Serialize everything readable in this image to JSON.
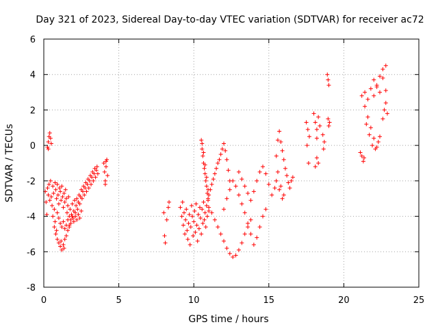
{
  "chart_data": {
    "type": "scatter",
    "title": "Day 321 of 2023, Sidereal Day-to-day VTEC variation (SDTVAR) for receiver ac72",
    "xlabel": "GPS time / hours",
    "ylabel": "SDTVAR / TECUs",
    "xlim": [
      0,
      25
    ],
    "ylim": [
      -8,
      6
    ],
    "xticks": [
      "0",
      "5",
      "10",
      "15",
      "20",
      "25"
    ],
    "yticks": [
      "-8",
      "-6",
      "-4",
      "-2",
      "0",
      "2",
      "4",
      "6"
    ],
    "grid": true,
    "marker": "plus",
    "color": "#ff0000",
    "series": [
      {
        "points": [
          [
            0.1,
            -2.6
          ],
          [
            0.15,
            -3.2
          ],
          [
            0.2,
            -3.9
          ],
          [
            0.25,
            -2.4
          ],
          [
            0.3,
            -2.8
          ],
          [
            0.35,
            -2.2
          ],
          [
            0.4,
            -3.1
          ],
          [
            0.45,
            -2.0
          ],
          [
            0.5,
            -2.9
          ],
          [
            0.55,
            -3.4
          ],
          [
            0.6,
            -2.3
          ],
          [
            0.65,
            -2.7
          ],
          [
            0.7,
            -3.6
          ],
          [
            0.75,
            -2.1
          ],
          [
            0.8,
            -2.5
          ],
          [
            0.85,
            -3.0
          ],
          [
            0.9,
            -2.2
          ],
          [
            0.95,
            -2.8
          ],
          [
            1.0,
            -3.3
          ],
          [
            1.05,
            -2.4
          ],
          [
            1.1,
            -2.6
          ],
          [
            1.15,
            -3.1
          ],
          [
            1.2,
            -2.3
          ],
          [
            1.25,
            -2.9
          ],
          [
            1.3,
            -3.5
          ],
          [
            1.35,
            -2.7
          ],
          [
            1.4,
            -3.2
          ],
          [
            1.45,
            -2.5
          ],
          [
            1.5,
            -3.0
          ],
          [
            1.55,
            -3.8
          ],
          [
            1.6,
            -3.4
          ],
          [
            1.65,
            -2.9
          ],
          [
            1.7,
            -4.0
          ],
          [
            1.75,
            -3.6
          ],
          [
            1.8,
            -4.2
          ],
          [
            1.85,
            -3.9
          ],
          [
            1.9,
            -3.3
          ],
          [
            1.95,
            -4.1
          ],
          [
            2.0,
            -3.7
          ],
          [
            2.05,
            -3.1
          ],
          [
            2.1,
            -3.8
          ],
          [
            2.15,
            -3.4
          ],
          [
            2.2,
            -3.0
          ],
          [
            2.25,
            -3.6
          ],
          [
            2.3,
            -3.2
          ],
          [
            2.35,
            -2.8
          ],
          [
            2.4,
            -3.3
          ],
          [
            2.45,
            -2.9
          ],
          [
            2.5,
            -2.5
          ],
          [
            2.55,
            -3.0
          ],
          [
            2.6,
            -2.6
          ],
          [
            2.65,
            -2.3
          ],
          [
            2.7,
            -2.8
          ],
          [
            2.75,
            -2.4
          ],
          [
            2.8,
            -2.1
          ],
          [
            2.85,
            -2.6
          ],
          [
            2.9,
            -2.2
          ],
          [
            2.95,
            -1.9
          ],
          [
            3.0,
            -2.4
          ],
          [
            3.05,
            -2.0
          ],
          [
            3.1,
            -1.7
          ],
          [
            3.15,
            -2.2
          ],
          [
            3.2,
            -1.8
          ],
          [
            3.25,
            -1.5
          ],
          [
            3.3,
            -2.0
          ],
          [
            3.35,
            -1.6
          ],
          [
            3.4,
            -1.3
          ],
          [
            3.45,
            -1.8
          ],
          [
            3.5,
            -1.4
          ],
          [
            3.55,
            -1.2
          ],
          [
            3.6,
            -1.6
          ],
          [
            0.25,
            -0.1
          ],
          [
            0.3,
            0.2
          ],
          [
            0.35,
            0.5
          ],
          [
            0.4,
            0.7
          ],
          [
            0.45,
            0.4
          ],
          [
            0.5,
            0.1
          ],
          [
            0.3,
            -0.2
          ],
          [
            0.6,
            -4.0
          ],
          [
            0.7,
            -4.6
          ],
          [
            0.8,
            -5.0
          ],
          [
            0.9,
            -5.3
          ],
          [
            1.0,
            -5.5
          ],
          [
            1.1,
            -5.7
          ],
          [
            1.2,
            -5.9
          ],
          [
            1.3,
            -5.6
          ],
          [
            1.4,
            -5.3
          ],
          [
            1.5,
            -5.1
          ],
          [
            1.6,
            -4.8
          ],
          [
            1.7,
            -4.5
          ],
          [
            0.75,
            -4.3
          ],
          [
            0.85,
            -4.8
          ],
          [
            1.15,
            -5.4
          ],
          [
            1.35,
            -5.8
          ],
          [
            0.9,
            -3.8
          ],
          [
            1.0,
            -4.1
          ],
          [
            1.1,
            -4.4
          ],
          [
            1.2,
            -4.6
          ],
          [
            1.3,
            -4.3
          ],
          [
            1.4,
            -4.7
          ],
          [
            1.5,
            -4.5
          ],
          [
            1.6,
            -4.2
          ],
          [
            1.7,
            -4.6
          ],
          [
            1.8,
            -4.4
          ],
          [
            1.9,
            -4.0
          ],
          [
            2.0,
            -4.3
          ],
          [
            2.1,
            -4.0
          ],
          [
            2.2,
            -4.2
          ],
          [
            2.3,
            -3.9
          ],
          [
            2.4,
            -4.1
          ],
          [
            2.5,
            -3.7
          ],
          [
            4.0,
            -1.0
          ],
          [
            4.05,
            -1.5
          ],
          [
            4.1,
            -2.0
          ],
          [
            4.15,
            -1.2
          ],
          [
            4.2,
            -0.8
          ],
          [
            4.25,
            -1.7
          ],
          [
            4.1,
            -2.2
          ],
          [
            4.15,
            -0.9
          ],
          [
            8.0,
            -3.8
          ],
          [
            8.05,
            -5.1
          ],
          [
            8.1,
            -5.5
          ],
          [
            8.2,
            -4.2
          ],
          [
            8.3,
            -3.5
          ],
          [
            8.35,
            -3.2
          ],
          [
            9.1,
            -3.5
          ],
          [
            9.2,
            -4.0
          ],
          [
            9.25,
            -3.2
          ],
          [
            9.3,
            -4.5
          ],
          [
            9.35,
            -3.8
          ],
          [
            9.4,
            -5.0
          ],
          [
            9.45,
            -4.2
          ],
          [
            9.5,
            -3.6
          ],
          [
            9.55,
            -4.8
          ],
          [
            9.6,
            -5.3
          ],
          [
            9.65,
            -4.4
          ],
          [
            9.7,
            -3.9
          ],
          [
            9.75,
            -5.6
          ],
          [
            9.8,
            -4.6
          ],
          [
            9.85,
            -3.4
          ],
          [
            9.9,
            -4.0
          ],
          [
            9.95,
            -5.1
          ],
          [
            10.0,
            -4.3
          ],
          [
            10.05,
            -3.7
          ],
          [
            10.1,
            -4.9
          ],
          [
            10.15,
            -3.3
          ],
          [
            10.2,
            -4.5
          ],
          [
            10.25,
            -5.4
          ],
          [
            10.3,
            -3.9
          ],
          [
            10.35,
            -4.7
          ],
          [
            10.4,
            -3.5
          ],
          [
            10.45,
            -4.1
          ],
          [
            10.5,
            -5.0
          ],
          [
            10.55,
            -3.6
          ],
          [
            10.6,
            -4.4
          ],
          [
            10.65,
            -3.2
          ],
          [
            10.7,
            -4.2
          ],
          [
            10.75,
            -3.8
          ],
          [
            10.8,
            -4.6
          ],
          [
            10.85,
            -3.4
          ],
          [
            10.9,
            -4.0
          ],
          [
            10.95,
            -3.1
          ],
          [
            11.0,
            -3.7
          ],
          [
            10.5,
            0.3
          ],
          [
            10.55,
            -0.2
          ],
          [
            10.6,
            -0.6
          ],
          [
            10.65,
            -1.0
          ],
          [
            10.7,
            -1.3
          ],
          [
            10.75,
            -1.6
          ],
          [
            10.8,
            -2.0
          ],
          [
            10.85,
            -2.3
          ],
          [
            10.9,
            -2.7
          ],
          [
            10.95,
            -3.0
          ],
          [
            10.55,
            0.1
          ],
          [
            10.65,
            -0.4
          ],
          [
            10.75,
            -1.1
          ],
          [
            10.85,
            -1.8
          ],
          [
            10.95,
            -2.5
          ],
          [
            11.0,
            -2.8
          ],
          [
            11.1,
            -2.5
          ],
          [
            11.2,
            -2.2
          ],
          [
            11.3,
            -1.9
          ],
          [
            11.4,
            -1.6
          ],
          [
            11.5,
            -1.3
          ],
          [
            11.6,
            -1.0
          ],
          [
            11.7,
            -0.8
          ],
          [
            11.8,
            -0.5
          ],
          [
            11.9,
            -0.2
          ],
          [
            12.0,
            0.1
          ],
          [
            12.1,
            -0.3
          ],
          [
            12.2,
            -0.8
          ],
          [
            12.3,
            -1.4
          ],
          [
            12.4,
            -2.0
          ],
          [
            11.0,
            -3.5
          ],
          [
            11.2,
            -3.8
          ],
          [
            11.4,
            -4.2
          ],
          [
            11.6,
            -4.6
          ],
          [
            11.8,
            -5.0
          ],
          [
            12.0,
            -5.4
          ],
          [
            12.2,
            -5.8
          ],
          [
            12.4,
            -6.1
          ],
          [
            12.6,
            -6.3
          ],
          [
            12.8,
            -6.2
          ],
          [
            13.0,
            -5.9
          ],
          [
            13.2,
            -5.5
          ],
          [
            13.4,
            -5.0
          ],
          [
            13.6,
            -4.6
          ],
          [
            13.8,
            -4.2
          ],
          [
            12.0,
            -3.6
          ],
          [
            12.2,
            -3.0
          ],
          [
            12.4,
            -2.5
          ],
          [
            12.6,
            -2.0
          ],
          [
            12.8,
            -2.3
          ],
          [
            13.0,
            -2.8
          ],
          [
            13.2,
            -3.3
          ],
          [
            13.4,
            -3.8
          ],
          [
            13.6,
            -4.4
          ],
          [
            13.8,
            -5.0
          ],
          [
            14.0,
            -5.6
          ],
          [
            14.2,
            -5.2
          ],
          [
            14.4,
            -4.6
          ],
          [
            14.6,
            -4.0
          ],
          [
            14.8,
            -3.6
          ],
          [
            13.0,
            -1.5
          ],
          [
            13.2,
            -1.9
          ],
          [
            13.4,
            -2.3
          ],
          [
            13.6,
            -2.7
          ],
          [
            13.8,
            -3.1
          ],
          [
            14.0,
            -2.6
          ],
          [
            14.2,
            -2.0
          ],
          [
            14.4,
            -1.5
          ],
          [
            14.6,
            -1.2
          ],
          [
            14.8,
            -1.6
          ],
          [
            15.0,
            -2.2
          ],
          [
            15.2,
            -2.8
          ],
          [
            15.4,
            -2.4
          ],
          [
            15.5,
            -0.6
          ],
          [
            15.6,
            0.3
          ],
          [
            15.7,
            0.8
          ],
          [
            15.8,
            0.2
          ],
          [
            15.9,
            -0.3
          ],
          [
            16.0,
            -0.8
          ],
          [
            16.1,
            -1.3
          ],
          [
            16.2,
            -1.7
          ],
          [
            16.3,
            -2.1
          ],
          [
            16.4,
            -2.4
          ],
          [
            16.5,
            -2.0
          ],
          [
            16.6,
            -1.8
          ],
          [
            15.6,
            -1.5
          ],
          [
            15.8,
            -2.3
          ],
          [
            16.0,
            -2.8
          ],
          [
            15.9,
            -3.0
          ],
          [
            15.7,
            -2.5
          ],
          [
            15.5,
            -2.0
          ],
          [
            17.5,
            1.3
          ],
          [
            17.6,
            0.9
          ],
          [
            17.55,
            0.0
          ],
          [
            17.65,
            -1.0
          ],
          [
            17.7,
            0.5
          ],
          [
            18.0,
            1.8
          ],
          [
            18.1,
            1.3
          ],
          [
            18.2,
            0.9
          ],
          [
            18.3,
            1.6
          ],
          [
            18.4,
            1.1
          ],
          [
            18.2,
            0.4
          ],
          [
            18.1,
            -1.2
          ],
          [
            18.2,
            -0.7
          ],
          [
            18.3,
            -1.0
          ],
          [
            18.6,
            0.6
          ],
          [
            18.7,
            0.2
          ],
          [
            18.65,
            -0.2
          ],
          [
            18.9,
            4.0
          ],
          [
            18.95,
            3.7
          ],
          [
            19.0,
            3.4
          ],
          [
            18.95,
            1.5
          ],
          [
            19.0,
            1.1
          ],
          [
            19.05,
            1.3
          ],
          [
            21.1,
            -0.4
          ],
          [
            21.2,
            -0.6
          ],
          [
            21.3,
            -0.9
          ],
          [
            21.35,
            -0.7
          ],
          [
            21.2,
            2.8
          ],
          [
            21.4,
            2.2
          ],
          [
            21.6,
            1.6
          ],
          [
            21.8,
            1.0
          ],
          [
            22.0,
            0.4
          ],
          [
            22.2,
            -0.1
          ],
          [
            22.4,
            0.5
          ],
          [
            22.6,
            1.5
          ],
          [
            22.8,
            2.4
          ],
          [
            21.4,
            3.0
          ],
          [
            21.6,
            2.6
          ],
          [
            21.8,
            3.2
          ],
          [
            22.0,
            2.8
          ],
          [
            22.2,
            3.4
          ],
          [
            22.4,
            3.0
          ],
          [
            22.6,
            3.8
          ],
          [
            22.8,
            4.5
          ],
          [
            22.0,
            3.7
          ],
          [
            22.2,
            3.3
          ],
          [
            22.4,
            3.9
          ],
          [
            22.6,
            4.3
          ],
          [
            22.8,
            3.1
          ],
          [
            22.7,
            2.0
          ],
          [
            22.9,
            1.8
          ],
          [
            21.5,
            1.2
          ],
          [
            21.7,
            0.6
          ],
          [
            21.9,
            0.0
          ],
          [
            22.1,
            -0.2
          ],
          [
            22.3,
            0.2
          ]
        ]
      }
    ]
  }
}
